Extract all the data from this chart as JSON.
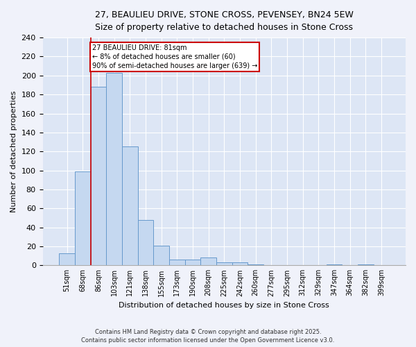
{
  "title": "27, BEAULIEU DRIVE, STONE CROSS, PEVENSEY, BN24 5EW",
  "subtitle": "Size of property relative to detached houses in Stone Cross",
  "xlabel": "Distribution of detached houses by size in Stone Cross",
  "ylabel": "Number of detached properties",
  "categories": [
    "51sqm",
    "68sqm",
    "86sqm",
    "103sqm",
    "121sqm",
    "138sqm",
    "155sqm",
    "173sqm",
    "190sqm",
    "208sqm",
    "225sqm",
    "242sqm",
    "260sqm",
    "277sqm",
    "295sqm",
    "312sqm",
    "329sqm",
    "347sqm",
    "364sqm",
    "382sqm",
    "399sqm"
  ],
  "values": [
    13,
    99,
    188,
    203,
    125,
    48,
    21,
    6,
    6,
    8,
    3,
    3,
    1,
    0,
    0,
    0,
    0,
    1,
    0,
    1,
    0
  ],
  "bar_color": "#c5d8f0",
  "bar_edge_color": "#6699cc",
  "red_line_x": 1.5,
  "annotation_text": "27 BEAULIEU DRIVE: 81sqm\n← 8% of detached houses are smaller (60)\n90% of semi-detached houses are larger (639) →",
  "annotation_box_color": "#ffffff",
  "annotation_box_edge": "#cc0000",
  "ylim": [
    0,
    240
  ],
  "yticks": [
    0,
    20,
    40,
    60,
    80,
    100,
    120,
    140,
    160,
    180,
    200,
    220,
    240
  ],
  "background_color": "#dde6f5",
  "grid_color": "#ffffff",
  "footer1": "Contains HM Land Registry data © Crown copyright and database right 2025.",
  "footer2": "Contains public sector information licensed under the Open Government Licence v3.0.",
  "fig_bg": "#f0f2fa"
}
